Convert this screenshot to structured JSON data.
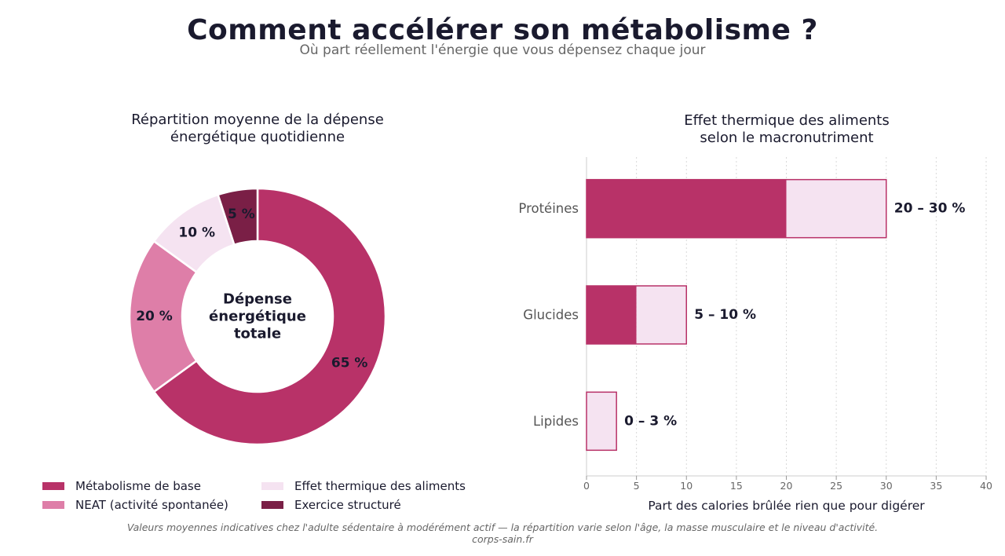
{
  "header": {
    "title": "Comment accélérer son métabolisme ?",
    "subtitle": "Où part réellement l'énergie que vous dépensez chaque jour"
  },
  "colors": {
    "metabolisme": "#b83268",
    "neat": "#de7ea8",
    "thermique": "#f5e3f1",
    "exercice": "#7a1f46",
    "bar_edge": "#b83268",
    "text_dark": "#1a1a2e",
    "text_grey": "#666666"
  },
  "chart_data": [
    {
      "type": "pie",
      "title": "Répartition moyenne de la dépense énergétique quotidienne",
      "title_lines": [
        "Répartition moyenne de la dépense",
        "énergétique quotidienne"
      ],
      "center_label_lines": [
        "Dépense",
        "énergétique",
        "totale"
      ],
      "slices": [
        {
          "key": "metabolisme",
          "label": "Métabolisme de base",
          "value": 65,
          "value_label": "65 %"
        },
        {
          "key": "neat",
          "label": "NEAT (activité spontanée)",
          "value": 20,
          "value_label": "20 %"
        },
        {
          "key": "thermique",
          "label": "Effet thermique des aliments",
          "value": 10,
          "value_label": "10 %"
        },
        {
          "key": "exercice",
          "label": "Exercice structuré",
          "value": 5,
          "value_label": "5 %"
        }
      ],
      "legend": "bottom"
    },
    {
      "type": "bar",
      "orientation": "horizontal",
      "title": "Effet thermique des aliments selon le macronutriment",
      "title_lines": [
        "Effet thermique des aliments",
        "selon le macronutriment"
      ],
      "categories": [
        "Protéines",
        "Glucides",
        "Lipides"
      ],
      "range_low": [
        20,
        5,
        0
      ],
      "range_high": [
        30,
        10,
        3
      ],
      "value_labels": [
        "20 – 30 %",
        "5 – 10 %",
        "0 – 3 %"
      ],
      "xlabel": "Part des calories brûlée rien que pour digérer",
      "xlim": [
        0,
        40
      ],
      "xticks": [
        0,
        5,
        10,
        15,
        20,
        25,
        30,
        35,
        40
      ],
      "grid": "vertical-dotted"
    }
  ],
  "footer": {
    "note": "Valeurs moyennes indicatives chez l'adulte sédentaire à modérément actif — la répartition varie selon l'âge, la masse musculaire et le niveau d'activité.",
    "source": "corps-sain.fr"
  }
}
